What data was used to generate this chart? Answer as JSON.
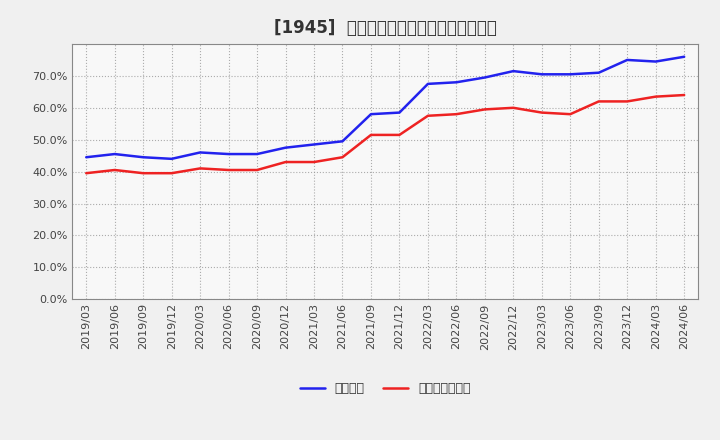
{
  "title": "[1945]  固定比率、固定長期適合率の推移",
  "x_labels": [
    "2019/03",
    "2019/06",
    "2019/09",
    "2019/12",
    "2020/03",
    "2020/06",
    "2020/09",
    "2020/12",
    "2021/03",
    "2021/06",
    "2021/09",
    "2021/12",
    "2022/03",
    "2022/06",
    "2022/09",
    "2022/12",
    "2023/03",
    "2023/06",
    "2023/09",
    "2023/12",
    "2024/03",
    "2024/06"
  ],
  "blue_values": [
    44.5,
    45.5,
    44.5,
    44.0,
    46.0,
    45.5,
    45.5,
    47.5,
    48.5,
    49.5,
    58.0,
    58.5,
    67.5,
    68.0,
    69.5,
    71.5,
    70.5,
    70.5,
    71.0,
    75.0,
    74.5,
    76.0
  ],
  "red_values": [
    39.5,
    40.5,
    39.5,
    39.5,
    41.0,
    40.5,
    40.5,
    43.0,
    43.0,
    44.5,
    51.5,
    51.5,
    57.5,
    58.0,
    59.5,
    60.0,
    58.5,
    58.0,
    62.0,
    62.0,
    63.5,
    64.0
  ],
  "blue_color": "#2222ee",
  "red_color": "#ee2222",
  "ylim": [
    0,
    80
  ],
  "yticks": [
    0,
    10,
    20,
    30,
    40,
    50,
    60,
    70
  ],
  "ytick_labels": [
    "0.0%",
    "10.0%",
    "20.0%",
    "30.0%",
    "40.0%",
    "50.0%",
    "60.0%",
    "70.0%"
  ],
  "legend_blue": "固定比率",
  "legend_red": "固定長期適合率",
  "bg_color": "#f0f0f0",
  "plot_bg_color": "#f8f8f8",
  "grid_color": "#999999",
  "title_color": "#333333",
  "title_fontsize": 12,
  "legend_fontsize": 9,
  "tick_fontsize": 8
}
